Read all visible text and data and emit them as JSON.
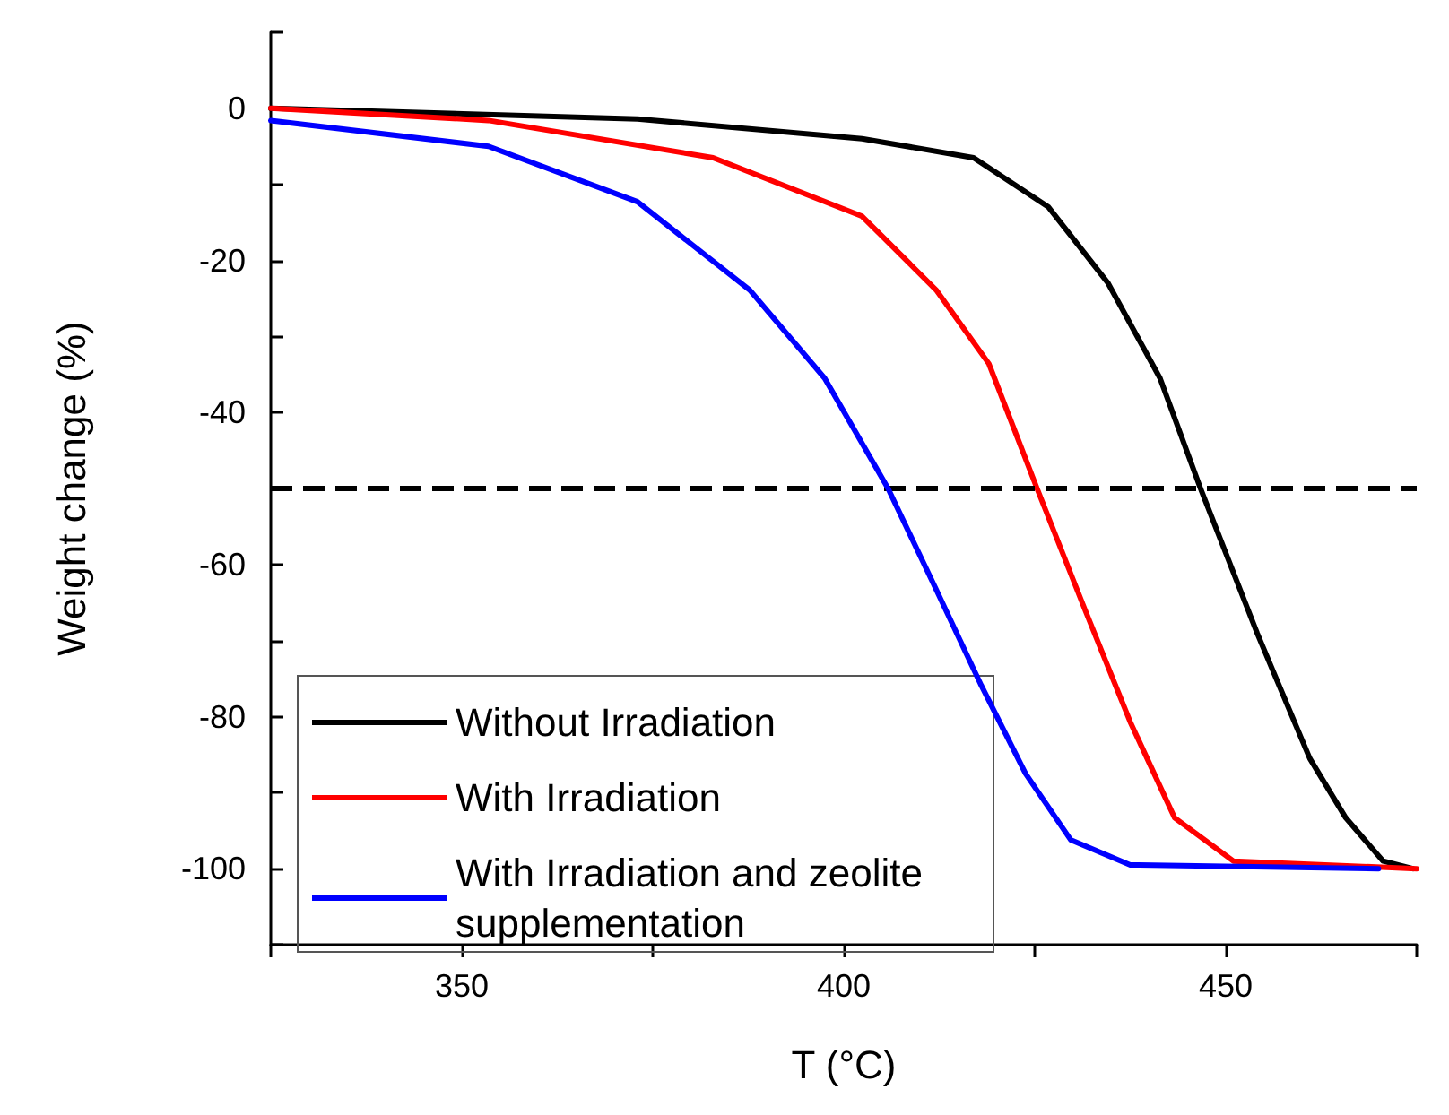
{
  "chart_data": {
    "type": "line",
    "xlabel": "T (°C)",
    "ylabel": "Weight change (%)",
    "xlim": [
      325,
      475
    ],
    "xticks": [
      {
        "value": 325,
        "label": null
      },
      350,
      {
        "value": 375,
        "label": null
      },
      400,
      {
        "value": 425,
        "label": null
      },
      450,
      {
        "value": 475,
        "label": null
      }
    ],
    "ylim": [
      -110,
      10
    ],
    "yticks": [
      {
        "value": 10,
        "label": null
      },
      0,
      {
        "value": -10,
        "label": null
      },
      -20,
      {
        "value": -30,
        "label": null
      },
      -40,
      {
        "value": -50,
        "label": null
      },
      -60,
      {
        "value": -70,
        "label": null
      },
      -80,
      {
        "value": -90,
        "label": null
      },
      -100,
      {
        "value": -110,
        "label": null
      }
    ],
    "grid": false,
    "legend": "bottom left",
    "marker": "none",
    "line_style": "solid",
    "series": [
      {
        "name": "Without Irradiation",
        "color": "#000000",
        "x": [
          325,
          373,
          402.4,
          417,
          426.8,
          434.6,
          441.4,
          446.7,
          454.1,
          461,
          465.7,
          470.6,
          474.5
        ],
        "values": [
          0,
          -1.4,
          -4,
          -6.5,
          -13,
          -23,
          -35.5,
          -50,
          -69,
          -85.5,
          -93.3,
          -99,
          -100
        ]
      },
      {
        "name": "With Irradiation",
        "color": "#ff0000",
        "x": [
          325,
          353.5,
          382.9,
          402.4,
          412.1,
          419,
          425.3,
          431.6,
          437.5,
          443.3,
          451,
          475
        ],
        "values": [
          0,
          -1.6,
          -6.5,
          -14.2,
          -23.9,
          -33.6,
          -50,
          -66,
          -80.7,
          -93.3,
          -99,
          -100
        ]
      },
      {
        "name": "With Irradiation and zeolite supplementation",
        "color": "#0000ff",
        "x": [
          325,
          353.5,
          373,
          387.7,
          397.5,
          405.8,
          412.1,
          418,
          423.8,
          429.7,
          437.5,
          470
        ],
        "values": [
          -1.6,
          -5,
          -12.3,
          -23.9,
          -35.5,
          -50,
          -63.3,
          -75.9,
          -87.5,
          -96.2,
          -99.5,
          -100
        ]
      }
    ],
    "ref_lines": [
      {
        "axis": "y",
        "value": -50,
        "color": "#000000",
        "line_style": "dashed"
      }
    ]
  }
}
